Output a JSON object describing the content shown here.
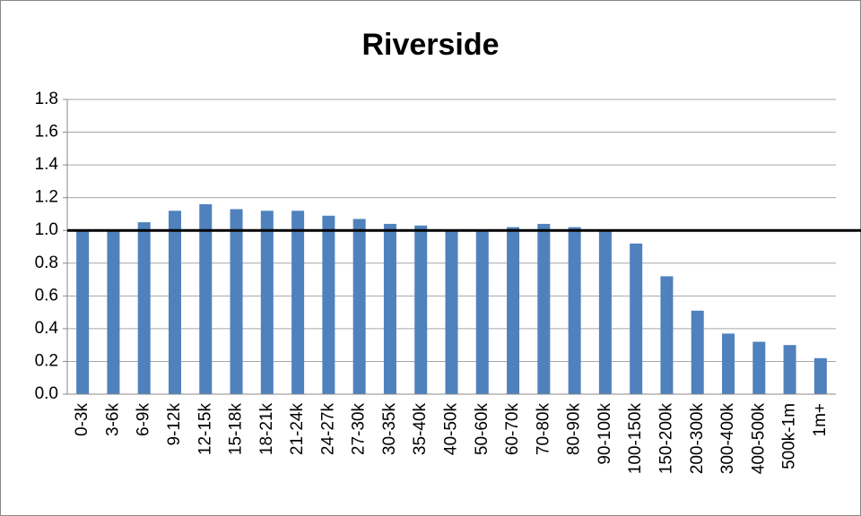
{
  "chart_data": {
    "type": "bar",
    "title": "Riverside",
    "categories": [
      "0-3k",
      "3-6k",
      "6-9k",
      "9-12k",
      "12-15k",
      "15-18k",
      "18-21k",
      "21-24k",
      "24-27k",
      "27-30k",
      "30-35k",
      "35-40k",
      "40-50k",
      "50-60k",
      "60-70k",
      "70-80k",
      "80-90k",
      "90-100k",
      "100-150k",
      "150-200k",
      "200-300k",
      "300-400k",
      "400-500k",
      "500k-1m",
      "1m+"
    ],
    "values": [
      1.0,
      1.0,
      1.05,
      1.12,
      1.16,
      1.13,
      1.12,
      1.12,
      1.09,
      1.07,
      1.04,
      1.03,
      1.0,
      1.0,
      1.02,
      1.04,
      1.02,
      1.0,
      0.92,
      0.72,
      0.51,
      0.37,
      0.32,
      0.3,
      0.22
    ],
    "color": "#4f81bd",
    "ylim": [
      0,
      1.8
    ],
    "yticks": [
      {
        "value": 0,
        "label": "0.0"
      },
      0.2,
      0.4,
      0.6,
      0.8,
      {
        "value": 1,
        "label": "1.0"
      },
      1.2,
      1.4,
      1.6,
      1.8
    ],
    "grid": true,
    "reference_line": 1
  }
}
